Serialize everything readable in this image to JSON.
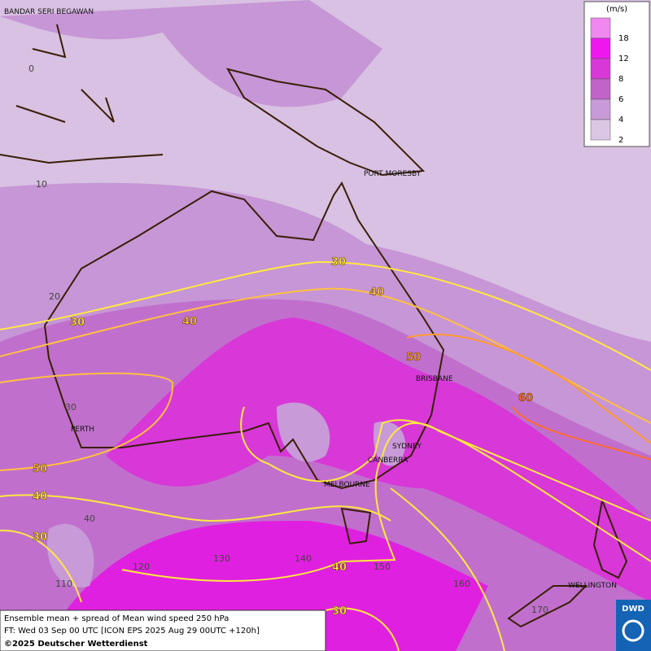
{
  "title": "Ensemble mean + spread of Mean wind speed 250 hPa",
  "forecast_time": "FT: Wed 03 Sep 00 UTC [ICON EPS 2025 Aug 29 00UTC +120h]",
  "copyright": "©2025 Deutscher Wetterdienst",
  "logo": "DWD",
  "legend": {
    "unit": "(m/s)",
    "levels": [
      {
        "value": 18,
        "color": "#f088f0"
      },
      {
        "value": 12,
        "color": "#ee18ee"
      },
      {
        "value": 8,
        "color": "#d838d8"
      },
      {
        "value": 6,
        "color": "#c064c8"
      },
      {
        "value": 4,
        "color": "#c89ad8"
      },
      {
        "value": 2,
        "color": "#dcc6e6"
      }
    ]
  },
  "cities": [
    "BANDAR SERI BEGAWAN",
    "PORT MORESBY",
    "BRISBANE",
    "PERTH",
    "SYDNEY",
    "CANBERRA",
    "MELBOURNE",
    "WELLINGTON"
  ],
  "grid_labels": [
    0,
    10,
    20,
    30,
    40,
    110,
    120,
    130,
    140,
    150,
    160,
    170
  ],
  "contour_labels": [
    {
      "value": 30,
      "color": "#ffe840"
    },
    {
      "value": 40,
      "color": "#ffc040"
    },
    {
      "value": 30,
      "color": "#ffe840"
    },
    {
      "value": 40,
      "color": "#ffc040"
    },
    {
      "value": 50,
      "color": "#ff9a30"
    },
    {
      "value": 60,
      "color": "#ff6a30"
    },
    {
      "value": 50,
      "color": "#ffc040"
    },
    {
      "value": 40,
      "color": "#ffe840"
    },
    {
      "value": 30,
      "color": "#ffe840"
    },
    {
      "value": 40,
      "color": "#ffe840"
    },
    {
      "value": 30,
      "color": "#ffe840"
    }
  ]
}
